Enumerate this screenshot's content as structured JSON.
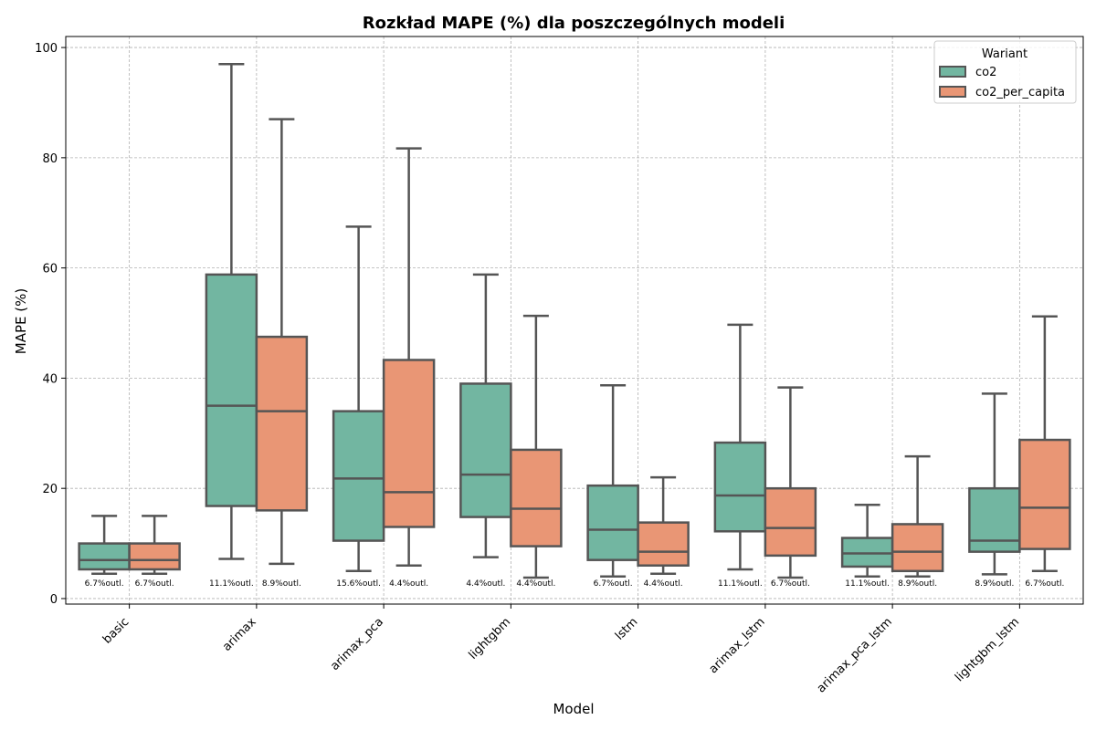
{
  "chart_data": {
    "type": "boxplot",
    "title": "Rozkład MAPE (%) dla poszczególnych modeli",
    "xlabel": "Model",
    "ylabel": "MAPE (%)",
    "ylim": [
      -1,
      102
    ],
    "yticks": [
      0,
      20,
      40,
      60,
      80,
      100
    ],
    "grid": true,
    "legend": {
      "title": "Wariant",
      "position": "top-right"
    },
    "categories": [
      "basic",
      "arimax",
      "arimax_pca",
      "lightgbm",
      "lstm",
      "arimax_lstm",
      "arimax_pca_lstm",
      "lightgbm_lstm"
    ],
    "series": [
      {
        "name": "co2",
        "color": "#72b6a1",
        "boxes": [
          {
            "whislo": 4.5,
            "q1": 5.3,
            "med": 7.0,
            "q3": 10.0,
            "whishi": 15.0,
            "outliers_label": "6.7%outl."
          },
          {
            "whislo": 7.2,
            "q1": 16.8,
            "med": 35.0,
            "q3": 58.8,
            "whishi": 97.0,
            "outliers_label": "11.1%outl."
          },
          {
            "whislo": 5.0,
            "q1": 10.5,
            "med": 21.8,
            "q3": 34.0,
            "whishi": 67.5,
            "outliers_label": "15.6%outl."
          },
          {
            "whislo": 7.5,
            "q1": 14.8,
            "med": 22.5,
            "q3": 39.0,
            "whishi": 58.8,
            "outliers_label": "4.4%outl."
          },
          {
            "whislo": 4.0,
            "q1": 7.0,
            "med": 12.5,
            "q3": 20.5,
            "whishi": 38.7,
            "outliers_label": "6.7%outl."
          },
          {
            "whislo": 5.3,
            "q1": 12.2,
            "med": 18.7,
            "q3": 28.3,
            "whishi": 49.7,
            "outliers_label": "11.1%outl."
          },
          {
            "whislo": 4.0,
            "q1": 5.8,
            "med": 8.2,
            "q3": 11.0,
            "whishi": 17.0,
            "outliers_label": "11.1%outl."
          },
          {
            "whislo": 4.4,
            "q1": 8.5,
            "med": 10.5,
            "q3": 20.0,
            "whishi": 37.2,
            "outliers_label": "8.9%outl."
          }
        ]
      },
      {
        "name": "co2_per_capita",
        "color": "#e99675",
        "boxes": [
          {
            "whislo": 4.5,
            "q1": 5.3,
            "med": 7.0,
            "q3": 10.0,
            "whishi": 15.0,
            "outliers_label": "6.7%outl."
          },
          {
            "whislo": 6.3,
            "q1": 16.0,
            "med": 34.0,
            "q3": 47.5,
            "whishi": 87.0,
            "outliers_label": "8.9%outl."
          },
          {
            "whislo": 6.0,
            "q1": 13.0,
            "med": 19.3,
            "q3": 43.3,
            "whishi": 81.7,
            "outliers_label": "4.4%outl."
          },
          {
            "whislo": 3.8,
            "q1": 9.5,
            "med": 16.3,
            "q3": 27.0,
            "whishi": 51.3,
            "outliers_label": "4.4%outl."
          },
          {
            "whislo": 4.5,
            "q1": 6.0,
            "med": 8.5,
            "q3": 13.8,
            "whishi": 22.0,
            "outliers_label": "4.4%outl."
          },
          {
            "whislo": 3.8,
            "q1": 7.8,
            "med": 12.8,
            "q3": 20.0,
            "whishi": 38.3,
            "outliers_label": "6.7%outl."
          },
          {
            "whislo": 4.0,
            "q1": 5.0,
            "med": 8.5,
            "q3": 13.5,
            "whishi": 25.8,
            "outliers_label": "8.9%outl."
          },
          {
            "whislo": 5.0,
            "q1": 9.0,
            "med": 16.5,
            "q3": 28.8,
            "whishi": 51.2,
            "outliers_label": "6.7%outl."
          }
        ]
      }
    ]
  }
}
